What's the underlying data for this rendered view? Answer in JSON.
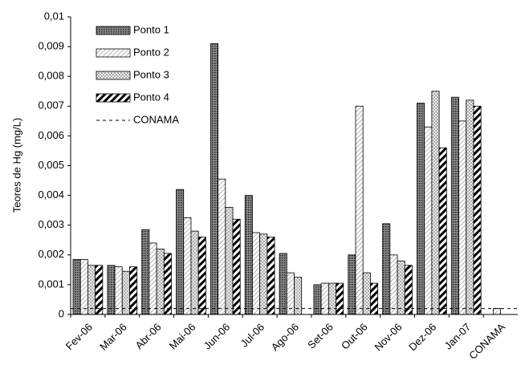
{
  "chart_data": {
    "type": "bar",
    "y_label": "Teores de Hg (mg/L)",
    "categories": [
      "Fev-06",
      "Mar-06",
      "Abr-06",
      "Mai-06",
      "Jun-06",
      "Jul-06",
      "Ago-06",
      "Set-06",
      "Out-06",
      "Nov-06",
      "Dez-06",
      "Jan-07",
      "CONAMA"
    ],
    "series": [
      {
        "name": "Ponto 1",
        "color": "#555555",
        "values": [
          0.00185,
          0.00165,
          0.00285,
          0.0042,
          0.0091,
          0.004,
          0.00205,
          0.001,
          0.002,
          0.00305,
          0.0071,
          0.0073,
          null
        ]
      },
      {
        "name": "Ponto 2",
        "color": "#cccccc",
        "values": [
          0.00185,
          0.0016,
          0.0024,
          0.00325,
          0.00455,
          0.00275,
          0.0014,
          0.00105,
          0.007,
          0.002,
          0.0063,
          0.0065,
          0.0002
        ]
      },
      {
        "name": "Ponto 3",
        "color": "#bbbbbb",
        "values": [
          0.00165,
          0.00145,
          0.0022,
          0.0028,
          0.0036,
          0.0027,
          0.00125,
          0.00105,
          0.0014,
          0.0018,
          0.0075,
          0.0072,
          null
        ]
      },
      {
        "name": "Ponto 4",
        "color": "#000000",
        "values": [
          0.00165,
          0.0016,
          0.00205,
          0.0026,
          0.0032,
          0.0026,
          null,
          0.00105,
          0.00105,
          0.00165,
          0.0056,
          0.007,
          null
        ]
      }
    ],
    "reference_line": {
      "name": "CONAMA",
      "value": 0.0002
    },
    "ylim": [
      0,
      0.01
    ],
    "yticks": [
      0,
      {
        "value": 0.001,
        "label": "0,001"
      },
      {
        "value": 0.002,
        "label": "0,002"
      },
      {
        "value": 0.003,
        "label": "0,003"
      },
      {
        "value": 0.004,
        "label": "0,004"
      },
      {
        "value": 0.005,
        "label": "0,005"
      },
      {
        "value": 0.006,
        "label": "0,006"
      },
      {
        "value": 0.007,
        "label": "0,007"
      },
      {
        "value": 0.008,
        "label": "0,008"
      },
      {
        "value": 0.009,
        "label": "0,009"
      },
      {
        "value": 0.01,
        "label": "0,01"
      }
    ],
    "grid": false,
    "legend": "upper left"
  }
}
